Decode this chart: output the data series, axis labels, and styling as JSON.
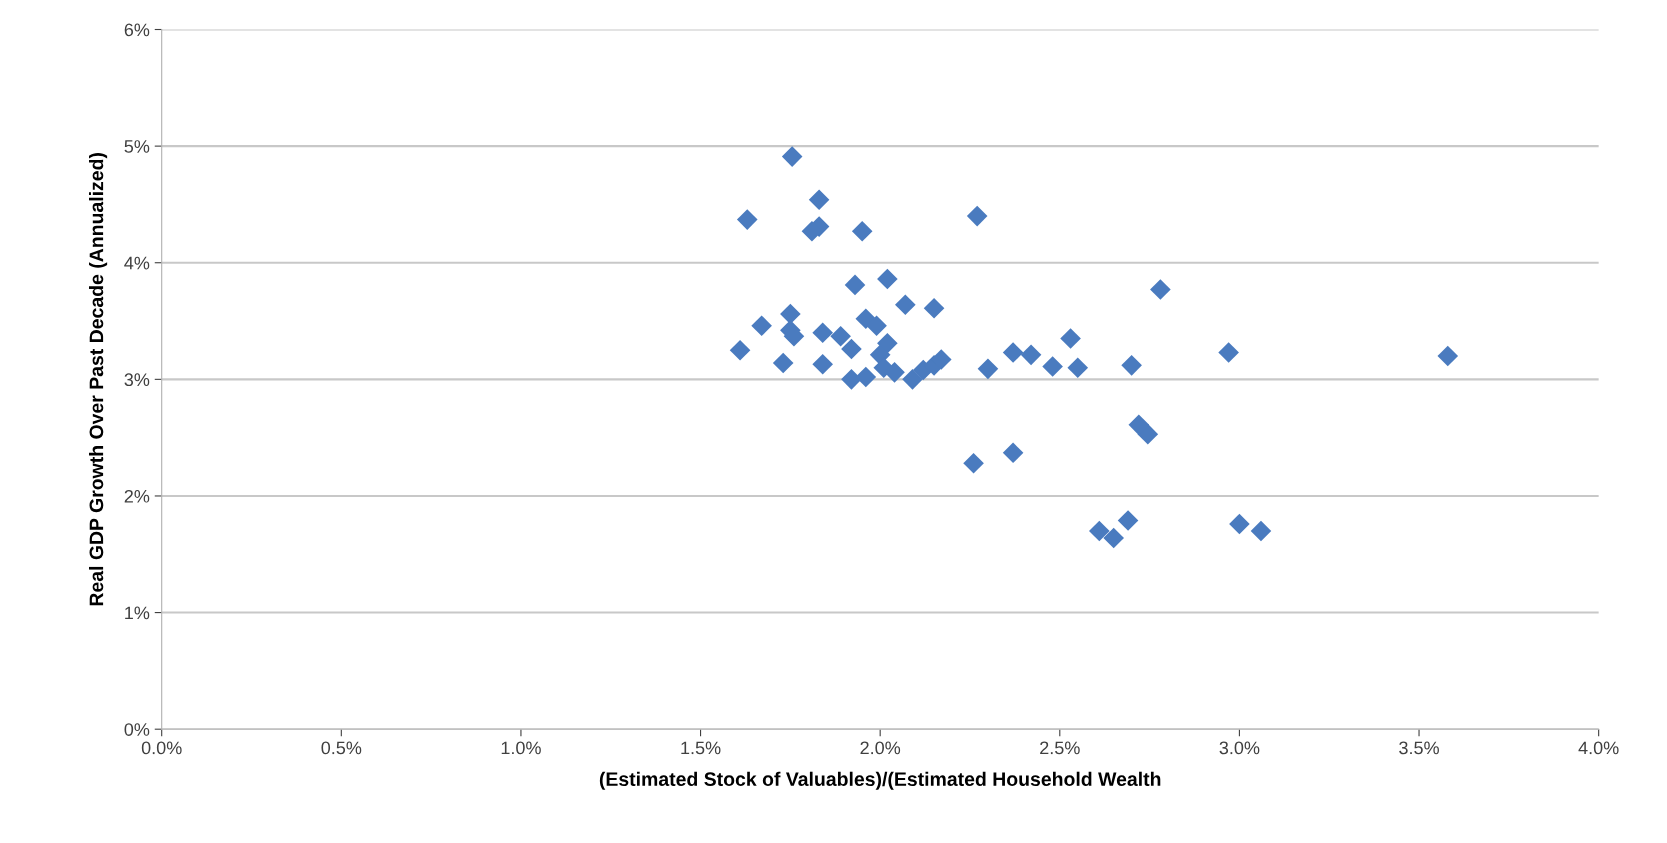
{
  "chart_data": {
    "type": "scatter",
    "xlabel": "(Estimated Stock of Valuables)/(Estimated Household Wealth",
    "ylabel": "Real GDP Growth Over Past Decade (Annualized)",
    "x": [
      1.755,
      1.83,
      1.63,
      1.83,
      1.81,
      1.95,
      2.27,
      1.93,
      2.02,
      2.07,
      2.15,
      1.75,
      1.67,
      1.75,
      1.76,
      1.61,
      1.73,
      1.84,
      1.84,
      1.89,
      1.92,
      1.96,
      1.99,
      2.02,
      2.0,
      2.01,
      2.04,
      1.92,
      1.96,
      2.09,
      2.12,
      2.15,
      2.17,
      2.3,
      2.37,
      2.42,
      2.53,
      2.48,
      2.55,
      2.7,
      2.78,
      2.97,
      3.58,
      2.745,
      2.72,
      2.26,
      2.37,
      2.69,
      2.61,
      2.65,
      3.0,
      3.06
    ],
    "values": [
      4.91,
      4.54,
      4.37,
      4.31,
      4.27,
      4.27,
      4.4,
      3.81,
      3.86,
      3.64,
      3.61,
      3.56,
      3.46,
      3.42,
      3.37,
      3.25,
      3.14,
      3.13,
      3.4,
      3.37,
      3.26,
      3.52,
      3.46,
      3.31,
      3.21,
      3.1,
      3.06,
      3.0,
      3.02,
      3.0,
      3.08,
      3.12,
      3.17,
      3.09,
      3.23,
      3.21,
      3.35,
      3.11,
      3.1,
      3.12,
      3.77,
      3.23,
      3.2,
      2.53,
      2.61,
      2.28,
      2.37,
      1.79,
      1.7,
      1.64,
      1.76,
      1.7
    ],
    "color": "#4a7bbf",
    "marker": "diamond",
    "grid": "y",
    "xlim": [
      0,
      4
    ],
    "ylim": [
      0,
      6
    ],
    "xticks": [
      {
        "value": 0,
        "label": "0.0%"
      },
      {
        "value": 0.5,
        "label": "0.5%"
      },
      {
        "value": 1,
        "label": "1.0%"
      },
      {
        "value": 1.5,
        "label": "1.5%"
      },
      {
        "value": 2,
        "label": "2.0%"
      },
      {
        "value": 2.5,
        "label": "2.5%"
      },
      {
        "value": 3,
        "label": "3.0%"
      },
      {
        "value": 3.5,
        "label": "3.5%"
      },
      {
        "value": 4,
        "label": "4.0%"
      }
    ],
    "yticks": [
      {
        "value": 0,
        "label": "0%"
      },
      {
        "value": 1,
        "label": "1%"
      },
      {
        "value": 2,
        "label": "2%"
      },
      {
        "value": 3,
        "label": "3%"
      },
      {
        "value": 4,
        "label": "4%"
      },
      {
        "value": 5,
        "label": "5%"
      },
      {
        "value": 6,
        "label": "6%"
      }
    ]
  }
}
